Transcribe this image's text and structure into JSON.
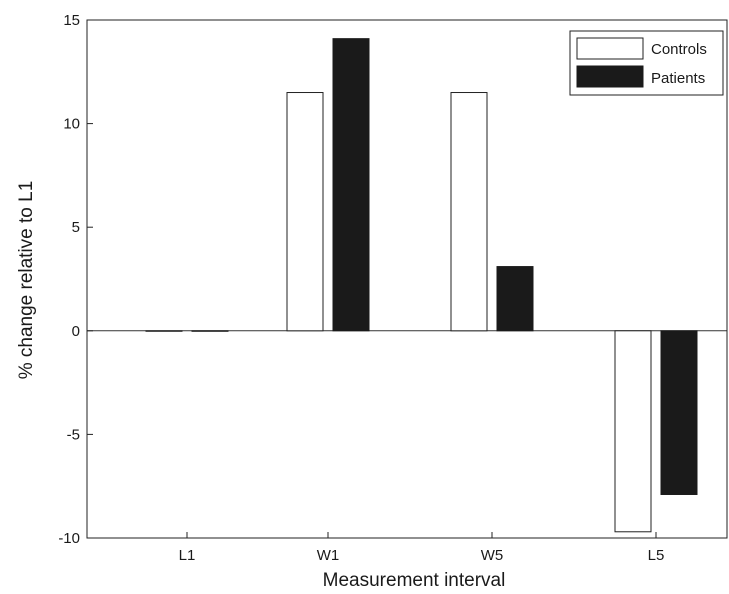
{
  "chart_data": {
    "type": "bar",
    "categories": [
      "L1",
      "W1",
      "W5",
      "L5"
    ],
    "series": [
      {
        "name": "Controls",
        "values": [
          0,
          11.5,
          11.5,
          -9.7
        ],
        "color": "#ffffff"
      },
      {
        "name": "Patients",
        "values": [
          0,
          14.1,
          3.1,
          -7.9
        ],
        "color": "#1a1a1a"
      }
    ],
    "xlabel": "Measurement interval",
    "ylabel": "% change relative to L1",
    "ylim": [
      -10,
      15
    ],
    "yticks": [
      -10,
      -5,
      0,
      5,
      10,
      15
    ],
    "grid": false,
    "legend_position": "top-right",
    "zero_line": true
  }
}
